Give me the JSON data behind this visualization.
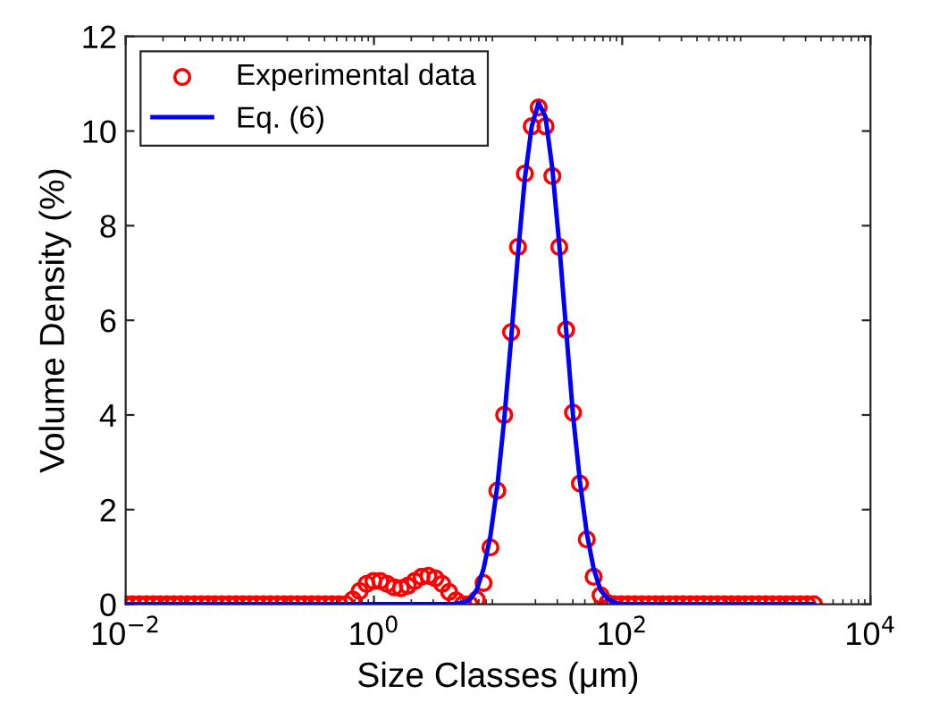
{
  "chart_data": {
    "type": "scatter",
    "xlabel": "Size Classes (μm)",
    "ylabel": "Volume Density (%)",
    "log": "x",
    "xlim": [
      0.01,
      10000
    ],
    "xticks": [
      {
        "value": 0.01,
        "label": "10$^{−2}$"
      },
      {
        "value": 1,
        "label": "10$^{0}$"
      },
      {
        "value": 100,
        "label": "10$^{2}$"
      },
      {
        "value": 10000,
        "label": "10$^{4}$"
      }
    ],
    "ylim": [
      0,
      12
    ],
    "yticks": [
      0,
      2,
      4,
      6,
      8,
      10,
      12
    ],
    "grid": false,
    "legend": "top left",
    "x": [
      0.01,
      0.01136,
      0.01291,
      0.01467,
      0.01667,
      0.01894,
      0.02151,
      0.02444,
      0.02777,
      0.03155,
      0.03585,
      0.04073,
      0.04627,
      0.05257,
      0.05973,
      0.06786,
      0.07709,
      0.08759,
      0.09952,
      0.1131,
      0.1285,
      0.146,
      0.1658,
      0.1884,
      0.2141,
      0.2432,
      0.2763,
      0.3139,
      0.3567,
      0.4052,
      0.4604,
      0.5231,
      0.5943,
      0.6752,
      0.7671,
      0.8716,
      0.9904,
      1.125,
      1.278,
      1.452,
      1.65,
      1.875,
      2.13,
      2.42,
      2.75,
      3.124,
      3.549,
      4.033,
      4.582,
      5.206,
      5.916,
      6.721,
      7.637,
      8.677,
      9.858,
      11.2,
      12.73,
      14.46,
      16.43,
      18.67,
      21.21,
      24.09,
      27.37,
      31.1,
      35.34,
      40.15,
      45.61,
      51.83,
      58.88,
      66.9,
      76.01,
      86.36,
      98.1,
      111.4,
      126.6,
      143.9,
      163.5,
      185.8,
      211,
      239.8,
      272.4,
      309.5,
      351.7,
      399.6,
      454,
      515.8,
      586,
      665.9,
      756.5,
      859.6,
      976.6,
      1110,
      1261,
      1432,
      1627,
      1849,
      2101,
      2387,
      2712,
      3081,
      3500
    ],
    "series": [
      {
        "name": "Experimental data",
        "color": "#ff0000",
        "marker": "circle",
        "values": [
          0,
          0,
          0,
          0,
          0,
          0,
          0,
          0,
          0,
          0,
          0,
          0,
          0,
          0,
          0,
          0,
          0,
          0,
          0,
          0,
          0,
          0,
          0,
          0,
          0,
          0,
          0,
          0,
          0,
          0,
          0,
          0,
          0,
          0.1,
          0.28,
          0.43,
          0.49,
          0.49,
          0.43,
          0.36,
          0.34,
          0.39,
          0.49,
          0.58,
          0.6,
          0.55,
          0.43,
          0.26,
          0.08,
          0,
          0,
          0.1,
          0.45,
          1.2,
          2.4,
          4.0,
          5.75,
          7.55,
          9.1,
          10.1,
          10.5,
          10.1,
          9.05,
          7.55,
          5.8,
          4.05,
          2.55,
          1.37,
          0.58,
          0.19,
          0.03,
          0,
          0,
          0,
          0,
          0,
          0,
          0,
          0,
          0,
          0,
          0,
          0,
          0,
          0,
          0,
          0,
          0,
          0,
          0,
          0,
          0,
          0,
          0,
          0,
          0,
          0,
          0,
          0,
          0,
          0
        ]
      },
      {
        "name": "Eq. (6)",
        "type": "line",
        "color": "#0000ff",
        "line_style": "solid",
        "marker": "none",
        "x": [
          0.01,
          2.75,
          3.124,
          3.549,
          4.033,
          4.582,
          5.206,
          5.916,
          6.721,
          7.637,
          8.677,
          9.858,
          11.2,
          12.73,
          14.46,
          16.43,
          18.67,
          21.21,
          24.09,
          27.37,
          31.1,
          35.34,
          40.15,
          45.61,
          51.83,
          58.88,
          66.9,
          76.01,
          86.36,
          98.1,
          111.4,
          126.6,
          3500
        ],
        "values": [
          0,
          0,
          0,
          0,
          0,
          0.01,
          0.03,
          0.1,
          0.3,
          0.75,
          1.45,
          2.5,
          3.9,
          5.6,
          7.4,
          9.0,
          10.1,
          10.6,
          10.3,
          9.2,
          7.6,
          5.8,
          4.0,
          2.6,
          1.5,
          0.75,
          0.3,
          0.12,
          0.04,
          0,
          0,
          0,
          0
        ]
      }
    ]
  }
}
